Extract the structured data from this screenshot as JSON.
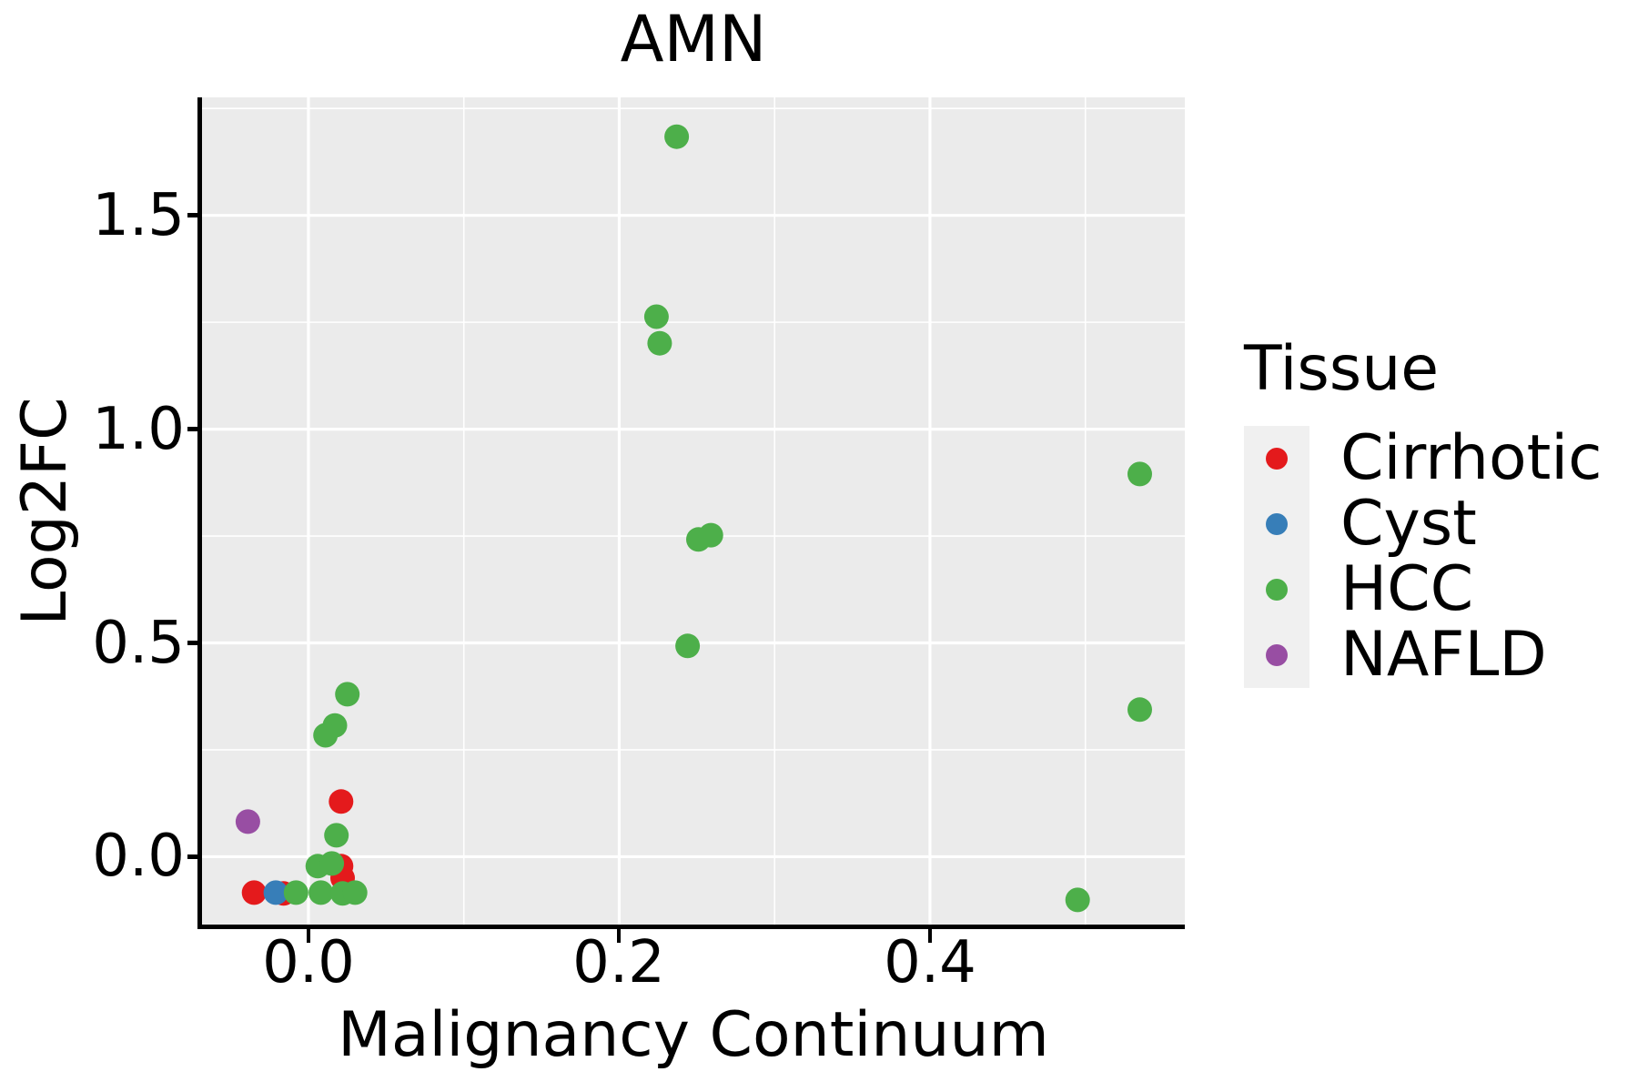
{
  "title": "AMN",
  "axes": {
    "x": {
      "label": "Malignancy Continuum",
      "ticks": [
        0.0,
        0.2,
        0.4
      ],
      "tick_labels": [
        "0.0",
        "0.2",
        "0.4"
      ],
      "minor_ticks": [
        0.1,
        0.3,
        0.5
      ],
      "range": [
        -0.0685,
        0.564
      ]
    },
    "y": {
      "label": "Log2FC",
      "ticks": [
        0.0,
        0.5,
        1.0,
        1.5
      ],
      "tick_labels": [
        "0.0",
        "0.5",
        "1.0",
        "1.5"
      ],
      "minor_ticks": [
        0.25,
        0.75,
        1.25,
        1.75
      ],
      "range": [
        -0.163,
        1.776
      ]
    }
  },
  "legend": {
    "title": "Tissue",
    "entries": [
      {
        "label": "Cirrhotic",
        "color": "#E41A1C"
      },
      {
        "label": "Cyst",
        "color": "#377EB8"
      },
      {
        "label": "HCC",
        "color": "#4DAF4A"
      },
      {
        "label": "NAFLD",
        "color": "#984EA3"
      }
    ]
  },
  "colors": {
    "panel_bg": "#EBEBEB",
    "grid": "#FFFFFF",
    "axis": "#000000",
    "legend_key_bg": "#F0F0F0"
  },
  "chart_data": {
    "type": "scatter",
    "title": "AMN",
    "xlabel": "Malignancy Continuum",
    "ylabel": "Log2FC",
    "xlim": [
      -0.0685,
      0.564
    ],
    "ylim": [
      -0.163,
      1.776
    ],
    "grid": "major-and-minor",
    "legend_position": "right",
    "series": [
      {
        "name": "Cirrhotic",
        "color": "#E41A1C",
        "points": [
          [
            0.021,
            0.129
          ],
          [
            0.021,
            -0.022
          ],
          [
            0.022,
            -0.05
          ],
          [
            -0.035,
            -0.084
          ],
          [
            -0.016,
            -0.086
          ]
        ]
      },
      {
        "name": "Cyst",
        "color": "#377EB8",
        "points": [
          [
            -0.021,
            -0.084
          ]
        ]
      },
      {
        "name": "HCC",
        "color": "#4DAF4A",
        "points": [
          [
            0.237,
            1.684
          ],
          [
            0.224,
            1.263
          ],
          [
            0.226,
            1.201
          ],
          [
            0.251,
            0.742
          ],
          [
            0.259,
            0.752
          ],
          [
            0.244,
            0.493
          ],
          [
            0.535,
            0.895
          ],
          [
            0.535,
            0.344
          ],
          [
            0.495,
            -0.101
          ],
          [
            0.025,
            0.38
          ],
          [
            0.017,
            0.307
          ],
          [
            0.011,
            0.284
          ],
          [
            0.018,
            0.05
          ],
          [
            0.006,
            -0.022
          ],
          [
            0.015,
            -0.016
          ],
          [
            -0.008,
            -0.084
          ],
          [
            0.008,
            -0.084
          ],
          [
            0.022,
            -0.086
          ],
          [
            0.03,
            -0.084
          ]
        ]
      },
      {
        "name": "NAFLD",
        "color": "#984EA3",
        "points": [
          [
            -0.039,
            0.082
          ]
        ]
      }
    ]
  }
}
